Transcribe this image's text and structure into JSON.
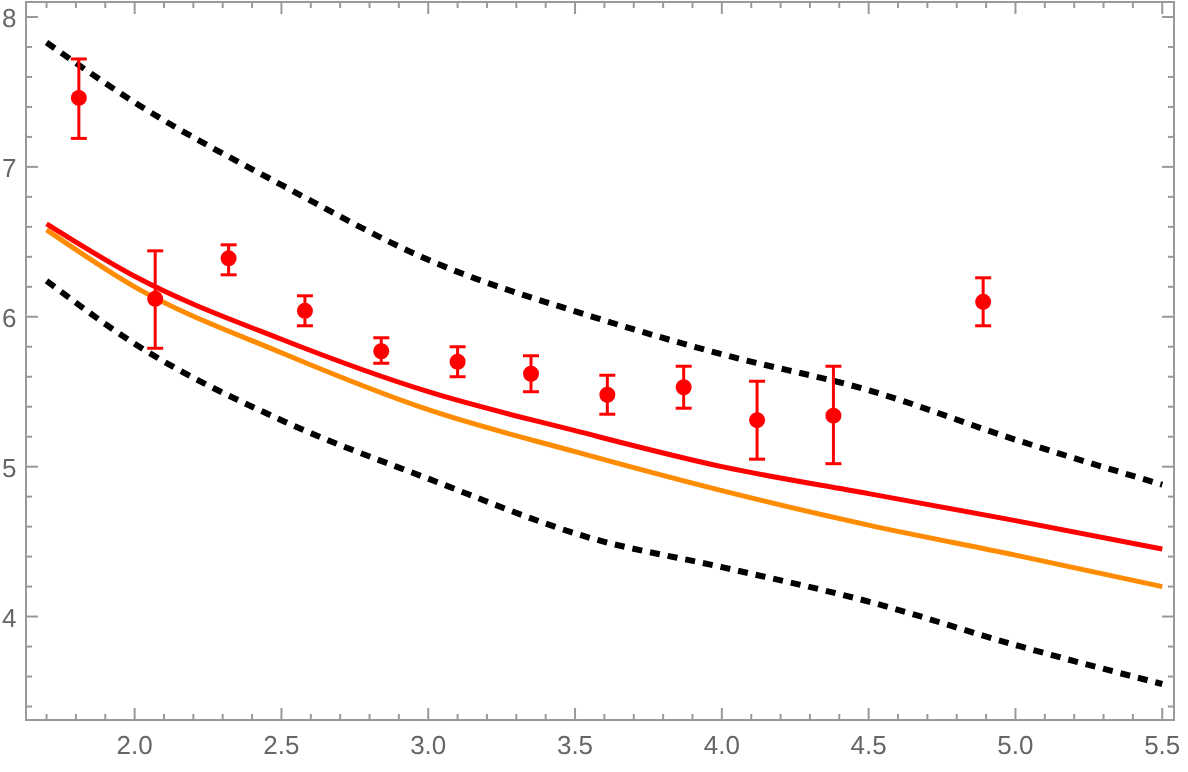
{
  "chart_data": {
    "type": "scatter",
    "xlim": [
      1.63,
      5.54
    ],
    "ylim": [
      3.31,
      8.1
    ],
    "xticks": [
      {
        "value": 1.7,
        "label": null
      },
      {
        "value": 1.8,
        "label": null
      },
      {
        "value": 1.9,
        "label": null
      },
      {
        "value": 2.0,
        "label": "2.0"
      },
      {
        "value": 2.1,
        "label": null
      },
      {
        "value": 2.2,
        "label": null
      },
      {
        "value": 2.3,
        "label": null
      },
      {
        "value": 2.4,
        "label": null
      },
      {
        "value": 2.5,
        "label": "2.5"
      },
      {
        "value": 2.6,
        "label": null
      },
      {
        "value": 2.7,
        "label": null
      },
      {
        "value": 2.8,
        "label": null
      },
      {
        "value": 2.9,
        "label": null
      },
      {
        "value": 3.0,
        "label": "3.0"
      },
      {
        "value": 3.1,
        "label": null
      },
      {
        "value": 3.2,
        "label": null
      },
      {
        "value": 3.3,
        "label": null
      },
      {
        "value": 3.4,
        "label": null
      },
      {
        "value": 3.5,
        "label": "3.5"
      },
      {
        "value": 3.6,
        "label": null
      },
      {
        "value": 3.7,
        "label": null
      },
      {
        "value": 3.8,
        "label": null
      },
      {
        "value": 3.9,
        "label": null
      },
      {
        "value": 4.0,
        "label": "4.0"
      },
      {
        "value": 4.1,
        "label": null
      },
      {
        "value": 4.2,
        "label": null
      },
      {
        "value": 4.3,
        "label": null
      },
      {
        "value": 4.4,
        "label": null
      },
      {
        "value": 4.5,
        "label": "4.5"
      },
      {
        "value": 4.6,
        "label": null
      },
      {
        "value": 4.7,
        "label": null
      },
      {
        "value": 4.8,
        "label": null
      },
      {
        "value": 4.9,
        "label": null
      },
      {
        "value": 5.0,
        "label": "5.0"
      },
      {
        "value": 5.1,
        "label": null
      },
      {
        "value": 5.2,
        "label": null
      },
      {
        "value": 5.3,
        "label": null
      },
      {
        "value": 5.4,
        "label": null
      },
      {
        "value": 5.5,
        "label": "5.5"
      }
    ],
    "yticks": [
      {
        "value": 3.4,
        "label": null
      },
      {
        "value": 3.6,
        "label": null
      },
      {
        "value": 3.8,
        "label": null
      },
      4,
      {
        "value": 4.2,
        "label": null
      },
      {
        "value": 4.4,
        "label": null
      },
      {
        "value": 4.6,
        "label": null
      },
      {
        "value": 4.8,
        "label": null
      },
      5,
      {
        "value": 5.2,
        "label": null
      },
      {
        "value": 5.4,
        "label": null
      },
      {
        "value": 5.6,
        "label": null
      },
      {
        "value": 5.8,
        "label": null
      },
      6,
      {
        "value": 6.2,
        "label": null
      },
      {
        "value": 6.4,
        "label": null
      },
      {
        "value": 6.6,
        "label": null
      },
      {
        "value": 6.8,
        "label": null
      },
      7,
      {
        "value": 7.2,
        "label": null
      },
      {
        "value": 7.4,
        "label": null
      },
      {
        "value": 7.6,
        "label": null
      },
      {
        "value": 7.8,
        "label": null
      },
      8
    ],
    "grid": false,
    "series": [
      {
        "type": "line",
        "color": "#000000",
        "line_style": "dashed",
        "x": [
          1.7,
          2.0,
          2.5,
          3.0,
          3.56,
          4.0,
          4.5,
          5.0,
          5.5
        ],
        "values": [
          7.83,
          7.43,
          6.88,
          6.38,
          6.0,
          5.75,
          5.51,
          5.18,
          4.88
        ]
      },
      {
        "type": "line",
        "color": "#000000",
        "line_style": "dashed",
        "x": [
          1.7,
          2.0,
          2.5,
          3.0,
          3.56,
          4.0,
          4.5,
          5.0,
          5.5
        ],
        "values": [
          6.24,
          5.82,
          5.31,
          4.92,
          4.52,
          4.33,
          4.1,
          3.81,
          3.55
        ]
      },
      {
        "type": "line",
        "color": "#ff8c00",
        "line_style": "solid",
        "x": [
          1.7,
          2.0,
          2.5,
          3.0,
          3.5,
          4.0,
          4.5,
          5.0,
          5.5
        ],
        "values": [
          6.58,
          6.2,
          5.76,
          5.38,
          5.1,
          4.84,
          4.61,
          4.41,
          4.2
        ]
      },
      {
        "type": "line",
        "color": "#ff0000",
        "line_style": "solid",
        "x": [
          1.7,
          2.0,
          2.5,
          3.0,
          3.5,
          4.0,
          4.5,
          5.0,
          5.5
        ],
        "values": [
          6.62,
          6.27,
          5.85,
          5.5,
          5.24,
          5.0,
          4.82,
          4.64,
          4.45
        ]
      },
      {
        "color": "#ff0000",
        "marker": "circle",
        "x": [
          1.81,
          2.07,
          2.32,
          2.58,
          2.84,
          3.1,
          3.35,
          3.61,
          3.87,
          4.12,
          4.38,
          4.89
        ],
        "values": [
          7.46,
          6.12,
          6.39,
          6.04,
          5.77,
          5.7,
          5.62,
          5.48,
          5.53,
          5.31,
          5.34,
          6.1
        ],
        "errors": [
          [
            7.19,
            7.72
          ],
          [
            5.79,
            6.44
          ],
          [
            6.28,
            6.48
          ],
          [
            5.94,
            6.14
          ],
          [
            5.69,
            5.86
          ],
          [
            5.6,
            5.8
          ],
          [
            5.5,
            5.74
          ],
          [
            5.35,
            5.61
          ],
          [
            5.39,
            5.67
          ],
          [
            5.05,
            5.57
          ],
          [
            5.02,
            5.67
          ],
          [
            5.94,
            6.26
          ]
        ]
      }
    ]
  }
}
